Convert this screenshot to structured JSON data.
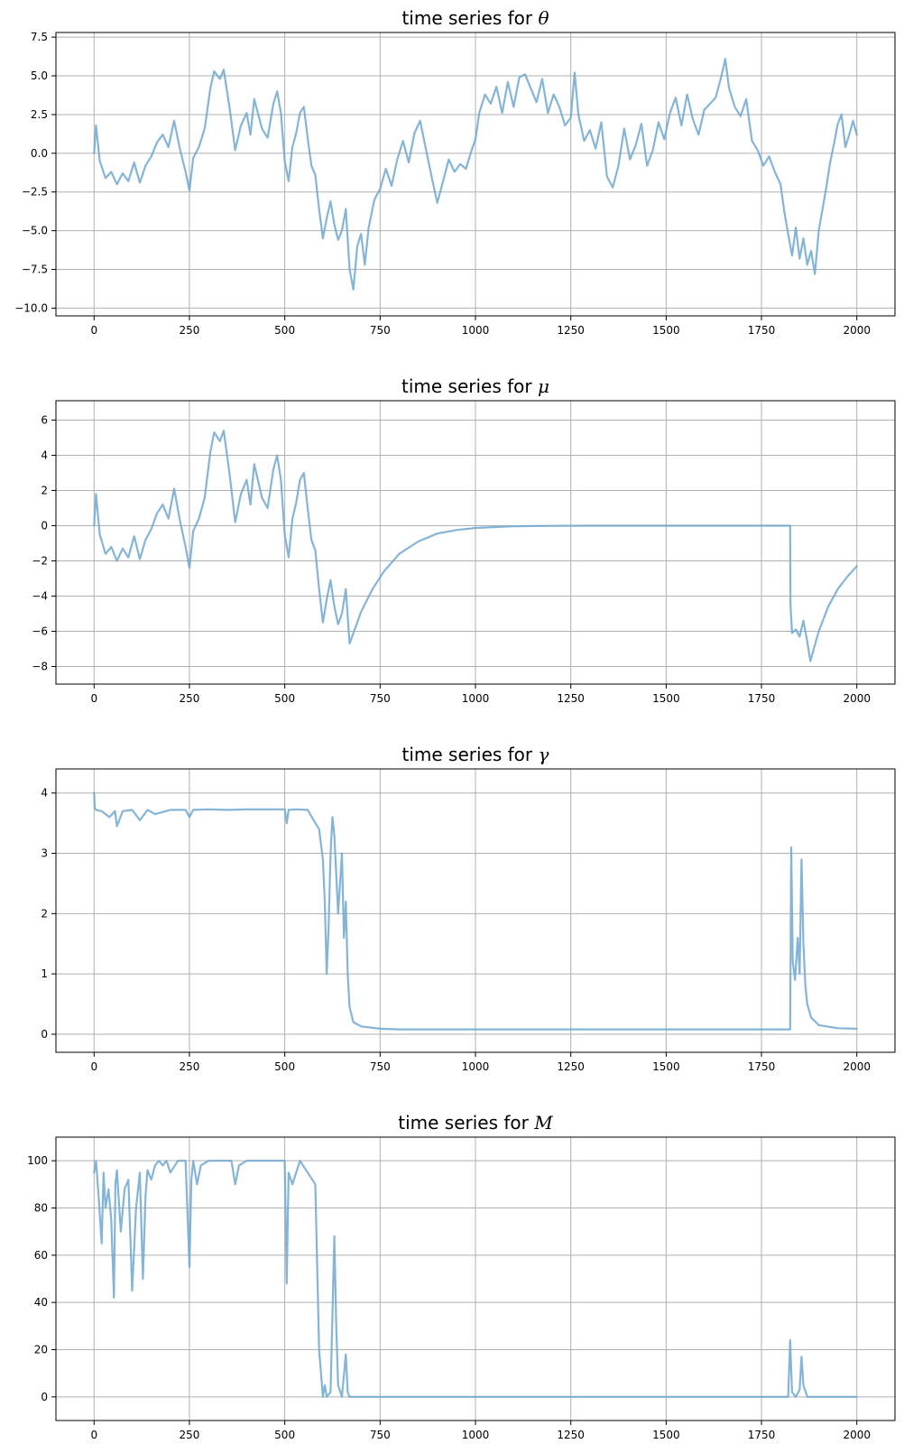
{
  "style": {
    "line_color": "#6fa8d0",
    "grid_color": "#b0b0b0"
  },
  "chart_data": [
    {
      "type": "line",
      "title_prefix": "time series for ",
      "title_symbol": "θ",
      "xlabel": "",
      "ylabel": "",
      "xlim": [
        -100,
        2100
      ],
      "ylim": [
        -10.5,
        7.8
      ],
      "xticks": [
        0,
        250,
        500,
        750,
        1000,
        1250,
        1500,
        1750,
        2000
      ],
      "yticks": [
        -10.0,
        -7.5,
        -5.0,
        -2.5,
        0.0,
        2.5,
        5.0,
        7.5
      ],
      "ytick_labels": [
        "−10.0",
        "−7.5",
        "−5.0",
        "−2.5",
        "0.0",
        "2.5",
        "5.0",
        "7.5"
      ],
      "grid": true,
      "series": [
        {
          "x": [
            0,
            5,
            15,
            30,
            45,
            60,
            75,
            90,
            105,
            120,
            135,
            150,
            165,
            180,
            195,
            210,
            225,
            240,
            250,
            260,
            275,
            290,
            305,
            315,
            330,
            340,
            355,
            370,
            385,
            400,
            410,
            420,
            440,
            455,
            470,
            480,
            490,
            500,
            510,
            520,
            530,
            540,
            550,
            560,
            570,
            580,
            590,
            600,
            610,
            620,
            630,
            640,
            650,
            660,
            670,
            680,
            690,
            700,
            710,
            720,
            735,
            750,
            765,
            780,
            795,
            810,
            825,
            840,
            855,
            870,
            885,
            900,
            915,
            930,
            945,
            960,
            975,
            990,
            1000,
            1010,
            1025,
            1040,
            1055,
            1070,
            1085,
            1100,
            1115,
            1130,
            1145,
            1160,
            1175,
            1190,
            1205,
            1220,
            1235,
            1250,
            1260,
            1270,
            1285,
            1300,
            1315,
            1330,
            1345,
            1360,
            1375,
            1390,
            1405,
            1420,
            1435,
            1450,
            1465,
            1480,
            1495,
            1510,
            1525,
            1540,
            1555,
            1570,
            1585,
            1600,
            1615,
            1630,
            1645,
            1655,
            1665,
            1680,
            1695,
            1710,
            1725,
            1740,
            1755,
            1770,
            1785,
            1800,
            1810,
            1820,
            1830,
            1840,
            1850,
            1860,
            1870,
            1880,
            1890,
            1900,
            1910,
            1920,
            1930,
            1940,
            1950,
            1960,
            1970,
            1980,
            1990,
            2000
          ],
          "y": [
            0.0,
            1.8,
            -0.5,
            -1.6,
            -1.2,
            -2.0,
            -1.3,
            -1.8,
            -0.6,
            -1.9,
            -0.8,
            -0.2,
            0.7,
            1.2,
            0.4,
            2.1,
            0.3,
            -1.2,
            -2.4,
            -0.3,
            0.4,
            1.6,
            4.2,
            5.3,
            4.8,
            5.4,
            3.0,
            0.2,
            1.8,
            2.6,
            1.2,
            3.5,
            1.6,
            1.0,
            3.2,
            4.0,
            2.6,
            -0.5,
            -1.8,
            0.4,
            1.3,
            2.6,
            3.0,
            1.0,
            -0.8,
            -1.4,
            -3.6,
            -5.5,
            -4.2,
            -3.1,
            -4.6,
            -5.6,
            -5.0,
            -3.6,
            -7.5,
            -8.8,
            -6.0,
            -5.2,
            -7.2,
            -4.8,
            -3.0,
            -2.3,
            -1.0,
            -2.1,
            -0.4,
            0.8,
            -0.6,
            1.3,
            2.1,
            0.3,
            -1.5,
            -3.2,
            -1.8,
            -0.4,
            -1.2,
            -0.7,
            -1.0,
            0.2,
            0.9,
            2.6,
            3.8,
            3.2,
            4.3,
            2.6,
            4.6,
            3.0,
            4.9,
            5.1,
            4.2,
            3.3,
            4.8,
            2.6,
            3.8,
            3.0,
            1.8,
            2.3,
            5.2,
            2.5,
            0.8,
            1.5,
            0.3,
            2.0,
            -1.5,
            -2.2,
            -0.8,
            1.6,
            -0.4,
            0.5,
            1.9,
            -0.8,
            0.2,
            2.0,
            0.9,
            2.6,
            3.6,
            1.8,
            3.8,
            2.2,
            1.2,
            2.8,
            3.2,
            3.6,
            5.0,
            6.1,
            4.2,
            3.0,
            2.4,
            3.5,
            0.8,
            0.2,
            -0.8,
            -0.2,
            -1.2,
            -2.0,
            -3.8,
            -5.2,
            -6.6,
            -4.8,
            -6.8,
            -5.5,
            -7.2,
            -6.3,
            -7.8,
            -5.0,
            -3.6,
            -2.2,
            -0.6,
            0.6,
            1.9,
            2.5,
            0.4,
            1.2,
            2.1,
            1.2
          ]
        }
      ]
    },
    {
      "type": "line",
      "title_prefix": "time series for ",
      "title_symbol": "μ",
      "xlabel": "",
      "ylabel": "",
      "xlim": [
        -100,
        2100
      ],
      "ylim": [
        -9.0,
        7.1
      ],
      "xticks": [
        0,
        250,
        500,
        750,
        1000,
        1250,
        1500,
        1750,
        2000
      ],
      "yticks": [
        -8,
        -6,
        -4,
        -2,
        0,
        2,
        4,
        6
      ],
      "ytick_labels": [
        "−8",
        "−6",
        "−4",
        "−2",
        "0",
        "2",
        "4",
        "6"
      ],
      "grid": true,
      "series": [
        {
          "x": [
            0,
            5,
            15,
            30,
            45,
            60,
            75,
            90,
            105,
            120,
            135,
            150,
            165,
            180,
            195,
            210,
            225,
            240,
            250,
            260,
            275,
            290,
            305,
            315,
            330,
            340,
            355,
            370,
            385,
            400,
            410,
            420,
            440,
            455,
            470,
            480,
            490,
            500,
            510,
            520,
            530,
            540,
            550,
            560,
            570,
            580,
            590,
            600,
            610,
            620,
            630,
            640,
            650,
            660,
            670,
            700,
            730,
            760,
            800,
            850,
            900,
            950,
            1000,
            1100,
            1200,
            1300,
            1400,
            1500,
            1600,
            1700,
            1800,
            1825,
            1826,
            1830,
            1840,
            1850,
            1860,
            1870,
            1878,
            1900,
            1925,
            1950,
            1975,
            2000
          ],
          "y": [
            0.0,
            1.8,
            -0.5,
            -1.6,
            -1.2,
            -2.0,
            -1.3,
            -1.8,
            -0.6,
            -1.9,
            -0.8,
            -0.2,
            0.7,
            1.2,
            0.4,
            2.1,
            0.3,
            -1.2,
            -2.4,
            -0.3,
            0.4,
            1.6,
            4.2,
            5.3,
            4.8,
            5.4,
            3.0,
            0.2,
            1.8,
            2.6,
            1.2,
            3.5,
            1.6,
            1.0,
            3.2,
            4.0,
            2.6,
            -0.5,
            -1.8,
            0.4,
            1.3,
            2.6,
            3.0,
            1.0,
            -0.8,
            -1.4,
            -3.6,
            -5.5,
            -4.2,
            -3.1,
            -4.6,
            -5.6,
            -5.0,
            -3.6,
            -6.7,
            -4.9,
            -3.6,
            -2.6,
            -1.6,
            -0.9,
            -0.45,
            -0.25,
            -0.13,
            -0.03,
            -0.01,
            0.0,
            0.0,
            0.0,
            0.0,
            0.0,
            0.0,
            0.0,
            -4.5,
            -6.1,
            -5.9,
            -6.3,
            -5.4,
            -6.6,
            -7.7,
            -6.0,
            -4.6,
            -3.6,
            -2.9,
            -2.3
          ]
        }
      ]
    },
    {
      "type": "line",
      "title_prefix": "time series for ",
      "title_symbol": "γ",
      "xlabel": "",
      "ylabel": "",
      "xlim": [
        -100,
        2100
      ],
      "ylim": [
        -0.3,
        4.4
      ],
      "xticks": [
        0,
        250,
        500,
        750,
        1000,
        1250,
        1500,
        1750,
        2000
      ],
      "yticks": [
        0,
        1,
        2,
        3,
        4
      ],
      "ytick_labels": [
        "0",
        "1",
        "2",
        "3",
        "4"
      ],
      "grid": true,
      "series": [
        {
          "x": [
            0,
            2,
            5,
            20,
            40,
            55,
            60,
            75,
            100,
            120,
            140,
            160,
            200,
            240,
            250,
            260,
            300,
            350,
            400,
            450,
            500,
            505,
            510,
            530,
            560,
            590,
            600,
            605,
            610,
            615,
            620,
            625,
            630,
            640,
            650,
            655,
            660,
            665,
            670,
            680,
            700,
            750,
            800,
            900,
            1000,
            1200,
            1400,
            1600,
            1800,
            1825,
            1828,
            1832,
            1838,
            1845,
            1850,
            1855,
            1860,
            1865,
            1870,
            1880,
            1900,
            1950,
            2000
          ],
          "y": [
            4.0,
            3.75,
            3.72,
            3.7,
            3.6,
            3.7,
            3.45,
            3.7,
            3.72,
            3.55,
            3.72,
            3.65,
            3.72,
            3.72,
            3.6,
            3.72,
            3.73,
            3.72,
            3.73,
            3.73,
            3.73,
            3.5,
            3.72,
            3.73,
            3.72,
            3.4,
            2.9,
            2.2,
            1.0,
            1.8,
            3.0,
            3.6,
            3.3,
            2.0,
            3.0,
            1.6,
            2.2,
            1.0,
            0.45,
            0.2,
            0.13,
            0.09,
            0.08,
            0.08,
            0.08,
            0.08,
            0.08,
            0.08,
            0.08,
            0.08,
            3.1,
            1.2,
            0.9,
            1.6,
            1.0,
            2.9,
            1.5,
            0.8,
            0.5,
            0.28,
            0.15,
            0.1,
            0.09
          ]
        }
      ]
    },
    {
      "type": "line",
      "title_prefix": "time series for ",
      "title_symbol": "M",
      "xlabel": "",
      "ylabel": "",
      "xlim": [
        -100,
        2100
      ],
      "ylim": [
        -10,
        110
      ],
      "xticks": [
        0,
        250,
        500,
        750,
        1000,
        1250,
        1500,
        1750,
        2000
      ],
      "yticks": [
        0,
        20,
        40,
        60,
        80,
        100
      ],
      "ytick_labels": [
        "0",
        "20",
        "40",
        "60",
        "80",
        "100"
      ],
      "grid": true,
      "series": [
        {
          "x": [
            0,
            5,
            12,
            20,
            25,
            30,
            38,
            45,
            52,
            56,
            60,
            70,
            80,
            90,
            100,
            110,
            120,
            128,
            135,
            140,
            150,
            160,
            170,
            180,
            190,
            200,
            220,
            240,
            250,
            255,
            260,
            270,
            280,
            300,
            320,
            340,
            360,
            370,
            380,
            400,
            420,
            450,
            500,
            505,
            510,
            520,
            540,
            560,
            580,
            590,
            600,
            605,
            610,
            620,
            630,
            635,
            640,
            650,
            660,
            665,
            670,
            700,
            800,
            1000,
            1200,
            1400,
            1600,
            1800,
            1820,
            1825,
            1830,
            1840,
            1850,
            1855,
            1860,
            1870,
            1880,
            1900,
            2000
          ],
          "y": [
            95,
            100,
            85,
            65,
            95,
            80,
            88,
            75,
            42,
            90,
            96,
            70,
            88,
            92,
            45,
            80,
            95,
            50,
            85,
            96,
            92,
            98,
            100,
            98,
            100,
            95,
            100,
            100,
            55,
            92,
            100,
            90,
            98,
            100,
            100,
            100,
            100,
            90,
            98,
            100,
            100,
            100,
            100,
            48,
            95,
            90,
            100,
            95,
            90,
            20,
            0,
            5,
            0,
            2,
            68,
            30,
            5,
            0,
            18,
            2,
            0,
            0,
            0,
            0,
            0,
            0,
            0,
            0,
            0,
            24,
            2,
            0,
            3,
            17,
            5,
            0,
            0,
            0,
            0
          ]
        }
      ]
    }
  ]
}
